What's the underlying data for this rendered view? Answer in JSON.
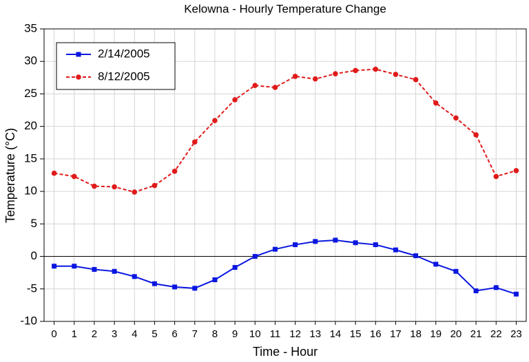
{
  "chart_data": {
    "type": "line",
    "title": "Kelowna - Hourly Temperature Change",
    "x_label": "Time - Hour",
    "y_label": "Temperature (°C)",
    "x": [
      0,
      1,
      2,
      3,
      4,
      5,
      6,
      7,
      8,
      9,
      10,
      11,
      12,
      13,
      14,
      15,
      16,
      17,
      18,
      19,
      20,
      21,
      22,
      23
    ],
    "series": [
      {
        "name": "2/14/2005",
        "color": "#0a16e0",
        "marker": "square",
        "dashed": false,
        "values": [
          -1.5,
          -1.5,
          -2.0,
          -2.3,
          -3.1,
          -4.2,
          -4.7,
          -4.9,
          -3.6,
          -1.7,
          0.0,
          1.1,
          1.8,
          2.3,
          2.5,
          2.1,
          1.8,
          1.0,
          0.1,
          -1.2,
          -2.3,
          -5.3,
          -4.8,
          -5.8
        ]
      },
      {
        "name": "8/12/2005",
        "color": "#e01a1a",
        "marker": "circle",
        "dashed": true,
        "values": [
          12.8,
          12.3,
          10.8,
          10.7,
          9.9,
          10.9,
          13.1,
          17.6,
          20.9,
          24.1,
          26.3,
          26.0,
          27.7,
          27.3,
          28.1,
          28.6,
          28.8,
          28.0,
          27.2,
          23.6,
          21.3,
          18.7,
          12.3,
          13.2
        ]
      }
    ],
    "xlim": [
      -0.5,
      23.5
    ],
    "xticks": [
      0,
      1,
      2,
      3,
      4,
      5,
      6,
      7,
      8,
      9,
      10,
      11,
      12,
      13,
      14,
      15,
      16,
      17,
      18,
      19,
      20,
      21,
      22,
      23
    ],
    "ylim": [
      -10,
      35
    ],
    "yticks": [
      -10,
      -5,
      0,
      5,
      10,
      15,
      20,
      25,
      30,
      35
    ],
    "grid": true,
    "legend": "top-left"
  }
}
